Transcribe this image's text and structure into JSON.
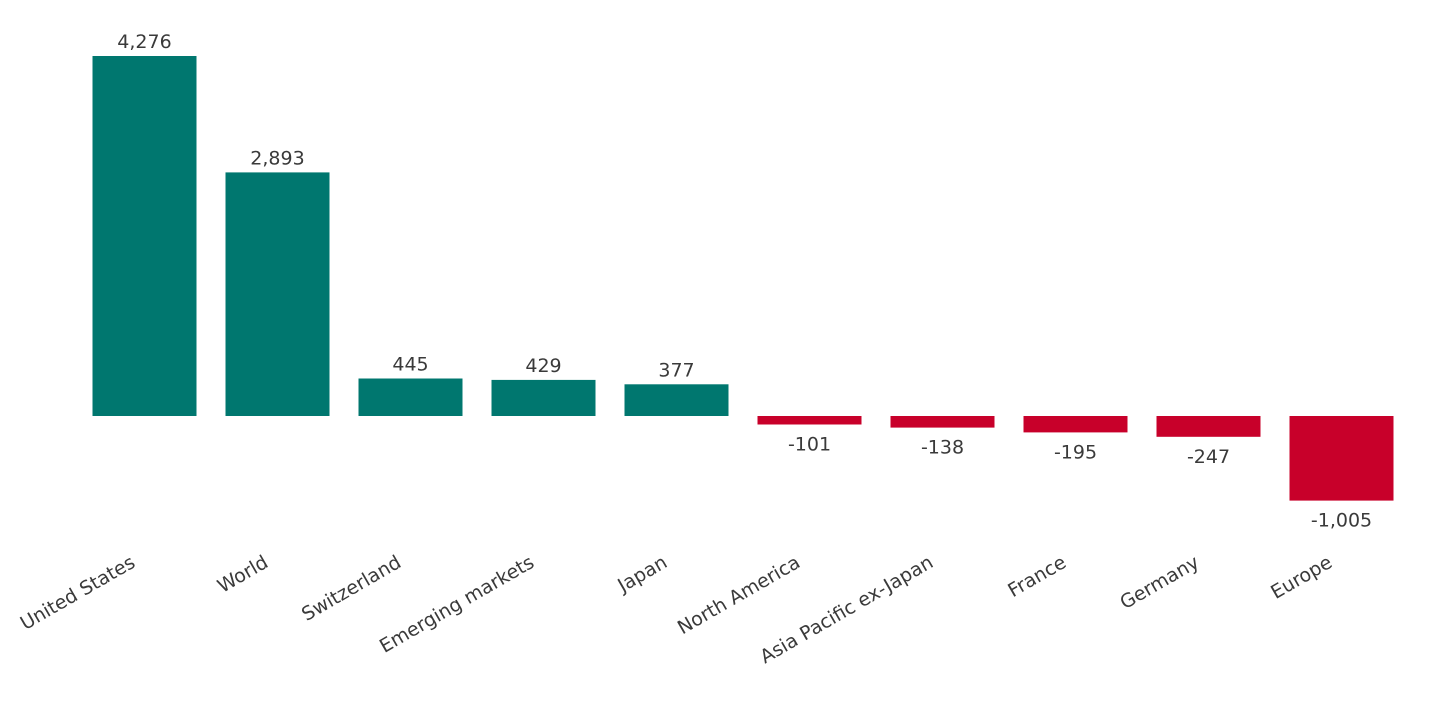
{
  "chart_data": {
    "type": "bar",
    "title": "",
    "xlabel": "",
    "ylabel": "",
    "categories": [
      "United States",
      "World",
      "Switzerland",
      "Emerging markets",
      "Japan",
      "North America",
      "Asia Pacific ex-Japan",
      "France",
      "Germany",
      "Europe"
    ],
    "values": [
      4276,
      2893,
      445,
      429,
      377,
      -101,
      -138,
      -195,
      -247,
      -1005
    ],
    "value_labels": [
      "4,276",
      "2,893",
      "445",
      "429",
      "377",
      "-101",
      "-138",
      "-195",
      "-247",
      "-1,005"
    ],
    "ylim": [
      -1005,
      4276
    ],
    "grid": false,
    "legend": "none",
    "colors": {
      "positive": "#00776f",
      "negative": "#c8002a"
    }
  }
}
